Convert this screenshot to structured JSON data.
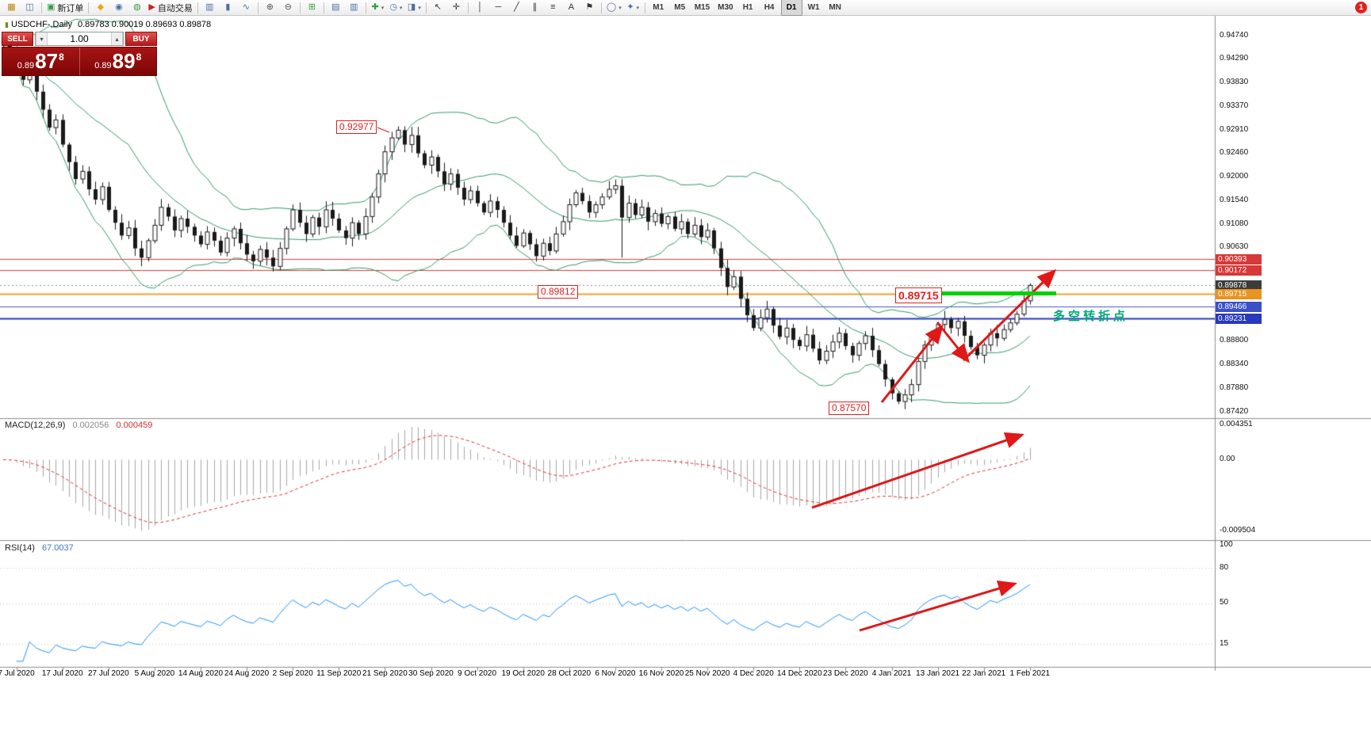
{
  "symbol": {
    "title": "USDCHF-,Daily",
    "ohlc": "0.89783 0.90019 0.89693 0.89878"
  },
  "badge": {
    "count": "1"
  },
  "trade_panel": {
    "sell_label": "SELL",
    "buy_label": "BUY",
    "volume": "1.00",
    "sell_price": {
      "big": "0.89",
      "pips": "87",
      "pipette": "8"
    },
    "buy_price": {
      "big": "0.89",
      "pips": "89",
      "pipette": "8"
    }
  },
  "toolbar": {
    "groups": [
      {
        "items": [
          {
            "name": "new-chart-button",
            "icon": "new-chart-icon",
            "glyph": "▦",
            "color": "#b8860b"
          },
          {
            "name": "profiles-button",
            "icon": "chart-profile-icon",
            "glyph": "◫",
            "color": "#4a6fa5"
          }
        ]
      },
      {
        "items": [
          {
            "name": "new-order-button",
            "icon": "new-order-icon",
            "glyph": "▣",
            "color": "#2f9e44",
            "label": "新订单"
          }
        ]
      },
      {
        "items": [
          {
            "name": "metaeditor-button",
            "icon": "metaeditor-icon",
            "glyph": "◆",
            "color": "#e6a817"
          },
          {
            "name": "market-button",
            "icon": "market-icon",
            "glyph": "◉",
            "color": "#4a6fa5"
          },
          {
            "name": "community-button",
            "icon": "community-icon",
            "glyph": "◍",
            "color": "#3b9e3b"
          },
          {
            "name": "autotrading-button",
            "icon": "autotrading-icon",
            "glyph": "▶",
            "color": "#cc2222",
            "label": "自动交易"
          }
        ]
      },
      {
        "items": [
          {
            "name": "bars-mode-button",
            "icon": "ohlc-bars-icon",
            "glyph": "▥",
            "color": "#4a6fa5"
          },
          {
            "name": "candles-mode-button",
            "icon": "candlestick-mode-icon",
            "glyph": "▮",
            "color": "#4a6fa5"
          },
          {
            "name": "line-mode-button",
            "icon": "line-chart-icon",
            "glyph": "∿",
            "color": "#4a6fa5"
          }
        ]
      },
      {
        "items": [
          {
            "name": "zoom-in-button",
            "icon": "zoom-in-icon",
            "glyph": "⊕",
            "color": "#555555"
          },
          {
            "name": "zoom-out-button",
            "icon": "zoom-out-icon",
            "glyph": "⊖",
            "color": "#555555"
          }
        ]
      },
      {
        "items": [
          {
            "name": "tile-windows-button",
            "icon": "tile-windows-icon",
            "glyph": "⊞",
            "color": "#3b9e3b"
          }
        ]
      },
      {
        "items": [
          {
            "name": "auto-arrange-button",
            "icon": "arrange-icon",
            "glyph": "▤",
            "color": "#4a6fa5"
          },
          {
            "name": "chart-shift-button",
            "icon": "chart-shift-icon",
            "glyph": "▥",
            "color": "#4a6fa5"
          }
        ]
      },
      {
        "items": [
          {
            "name": "indicators-button",
            "icon": "add-indicator-icon",
            "glyph": "✚",
            "color": "#2f9e44",
            "dropdown": true
          },
          {
            "name": "periods-button",
            "icon": "clock-icon",
            "glyph": "◷",
            "color": "#4a6fa5",
            "dropdown": true
          },
          {
            "name": "templates-button",
            "icon": "template-icon",
            "glyph": "◨",
            "color": "#4a6fa5",
            "dropdown": true
          }
        ]
      },
      {
        "items": [
          {
            "name": "cursor-button",
            "icon": "cursor-icon",
            "glyph": "↖",
            "color": "#333333"
          },
          {
            "name": "crosshair-button",
            "icon": "crosshair-icon",
            "glyph": "✛",
            "color": "#333333"
          }
        ]
      },
      {
        "items": [
          {
            "name": "vertical-line-button",
            "icon": "vertical-line-icon",
            "glyph": "│",
            "color": "#333333"
          },
          {
            "name": "horizontal-line-button",
            "icon": "horizontal-line-icon",
            "glyph": "─",
            "color": "#333333"
          },
          {
            "name": "trendline-button",
            "icon": "trendline-icon",
            "glyph": "╱",
            "color": "#333333"
          },
          {
            "name": "channel-button",
            "icon": "channel-icon",
            "glyph": "∥",
            "color": "#333333"
          },
          {
            "name": "fibonacci-button",
            "icon": "fibonacci-icon",
            "glyph": "≡",
            "color": "#333333"
          },
          {
            "name": "text-button",
            "icon": "text-icon",
            "glyph": "A",
            "color": "#333333"
          },
          {
            "name": "label-button",
            "icon": "flag-icon",
            "glyph": "⚑",
            "color": "#333333"
          }
        ]
      },
      {
        "items": [
          {
            "name": "shapes-button",
            "icon": "shapes-icon",
            "glyph": "◯",
            "color": "#4a6fa5",
            "dropdown": true
          },
          {
            "name": "arrows-tool-button",
            "icon": "arrow-tool-icon",
            "glyph": "✦",
            "color": "#4a6fa5",
            "dropdown": true
          }
        ]
      },
      {
        "items": [
          {
            "name": "tf-m1",
            "label": "M1",
            "tf": true
          },
          {
            "name": "tf-m5",
            "label": "M5",
            "tf": true
          },
          {
            "name": "tf-m15",
            "label": "M15",
            "tf": true
          },
          {
            "name": "tf-m30",
            "label": "M30",
            "tf": true
          },
          {
            "name": "tf-h1",
            "label": "H1",
            "tf": true
          },
          {
            "name": "tf-h4",
            "label": "H4",
            "tf": true
          },
          {
            "name": "tf-d1",
            "label": "D1",
            "tf": true,
            "active": true
          },
          {
            "name": "tf-w1",
            "label": "W1",
            "tf": true
          },
          {
            "name": "tf-mn",
            "label": "MN",
            "tf": true
          }
        ]
      }
    ]
  },
  "macd_panel": {
    "title": "MACD(12,26,9)",
    "value_main": "0.002056",
    "value_signal": "0.000459",
    "axis": [
      "0.004351",
      "0.00",
      "-0.009504"
    ]
  },
  "rsi_panel": {
    "title": "RSI(14)",
    "value": "67.0037",
    "axis": [
      "100",
      "80",
      "50",
      "15"
    ],
    "levels": [
      80,
      50,
      15
    ]
  },
  "chart_data": {
    "type": "candlestick",
    "symbol": "USDCHF",
    "timeframe": "Daily",
    "x_labels": [
      "7 Jul 2020",
      "17 Jul 2020",
      "27 Jul 2020",
      "5 Aug 2020",
      "14 Aug 2020",
      "24 Aug 2020",
      "2 Sep 2020",
      "11 Sep 2020",
      "21 Sep 2020",
      "30 Sep 2020",
      "9 Oct 2020",
      "19 Oct 2020",
      "28 Oct 2020",
      "6 Nov 2020",
      "16 Nov 2020",
      "25 Nov 2020",
      "4 Dec 2020",
      "14 Dec 2020",
      "23 Dec 2020",
      "4 Jan 2021",
      "13 Jan 2021",
      "22 Jan 2021",
      "1 Feb 2021"
    ],
    "closes": [
      0.9458,
      0.9442,
      0.9425,
      0.9388,
      0.9402,
      0.9365,
      0.933,
      0.9295,
      0.931,
      0.9262,
      0.9228,
      0.9195,
      0.921,
      0.9175,
      0.9155,
      0.918,
      0.9135,
      0.911,
      0.9085,
      0.91,
      0.906,
      0.9042,
      0.9075,
      0.9105,
      0.914,
      0.9122,
      0.9095,
      0.9118,
      0.9102,
      0.9085,
      0.9068,
      0.9092,
      0.9075,
      0.9052,
      0.908,
      0.9098,
      0.907,
      0.9048,
      0.9035,
      0.9058,
      0.9042,
      0.9025,
      0.906,
      0.9098,
      0.9135,
      0.911,
      0.9088,
      0.912,
      0.9102,
      0.9135,
      0.9118,
      0.9095,
      0.908,
      0.911,
      0.9088,
      0.9122,
      0.916,
      0.9205,
      0.9248,
      0.9275,
      0.929,
      0.9262,
      0.928,
      0.9245,
      0.9222,
      0.9238,
      0.921,
      0.9185,
      0.9205,
      0.9178,
      0.9155,
      0.9172,
      0.9148,
      0.913,
      0.9152,
      0.9135,
      0.911,
      0.9085,
      0.9065,
      0.909,
      0.9068,
      0.9045,
      0.907,
      0.9055,
      0.9088,
      0.9112,
      0.9145,
      0.9168,
      0.9152,
      0.913,
      0.9145,
      0.916,
      0.9175,
      0.9182,
      0.912,
      0.9148,
      0.9125,
      0.914,
      0.9112,
      0.9128,
      0.9108,
      0.9122,
      0.9098,
      0.9112,
      0.9088,
      0.9105,
      0.9082,
      0.9095,
      0.906,
      0.9022,
      0.8985,
      0.9005,
      0.8962,
      0.893,
      0.8905,
      0.8925,
      0.8942,
      0.891,
      0.8888,
      0.8905,
      0.8882,
      0.887,
      0.8892,
      0.8865,
      0.8842,
      0.886,
      0.8878,
      0.8895,
      0.887,
      0.8852,
      0.8875,
      0.889,
      0.8862,
      0.8835,
      0.8805,
      0.8778,
      0.8762,
      0.8775,
      0.8795,
      0.884,
      0.8872,
      0.8895,
      0.8912,
      0.8922,
      0.8905,
      0.8918,
      0.889,
      0.8868,
      0.8852,
      0.8872,
      0.8895,
      0.8885,
      0.8902,
      0.8915,
      0.8932,
      0.8958,
      0.8988
    ],
    "last_bar": {
      "open": 0.89783,
      "high": 0.90019,
      "low": 0.89693,
      "close": 0.89878
    },
    "key_extremes": {
      "peak_high": 0.92977,
      "peak_index": 60,
      "trough_low": 0.8757,
      "trough_index": 136
    },
    "price_axis": [
      "0.94740",
      "0.94290",
      "0.93830",
      "0.93370",
      "0.92910",
      "0.92460",
      "0.92000",
      "0.91540",
      "0.91080",
      "0.90630",
      "0.90170",
      "0.89710",
      "0.89250",
      "0.88800",
      "0.88340",
      "0.87880",
      "0.87420"
    ],
    "levels": [
      {
        "label": "0.90393",
        "price": 0.90393,
        "color": "#e03c3c",
        "width": 1,
        "tag_bg": "#d83838"
      },
      {
        "label": "0.90172",
        "price": 0.90172,
        "color": "#e03c3c",
        "width": 1,
        "tag_bg": "#d83838"
      },
      {
        "label": "0.89878",
        "price": 0.89878,
        "color": "#909090",
        "width": 1,
        "dotted": true,
        "tag_bg": "#3c3c3c"
      },
      {
        "label": "0.89715",
        "price": 0.89715,
        "color": "#f0a030",
        "width": 2,
        "tag_bg": "#e8941f"
      },
      {
        "label": "0.89466",
        "price": 0.89466,
        "color": "#4056c8",
        "width": 1,
        "tag_bg": "#3c50c8"
      },
      {
        "label": "0.89231",
        "price": 0.89231,
        "color": "#2838c0",
        "width": 2,
        "tag_bg": "#2838c0"
      }
    ],
    "support_zone": {
      "price": 0.89715,
      "color": "#00d200"
    },
    "annotations": {
      "peak": "0.92977",
      "shelf": "0.89812",
      "key_level": "0.89715",
      "trough": "0.87570",
      "turning_point_text": "多空转折点"
    }
  }
}
